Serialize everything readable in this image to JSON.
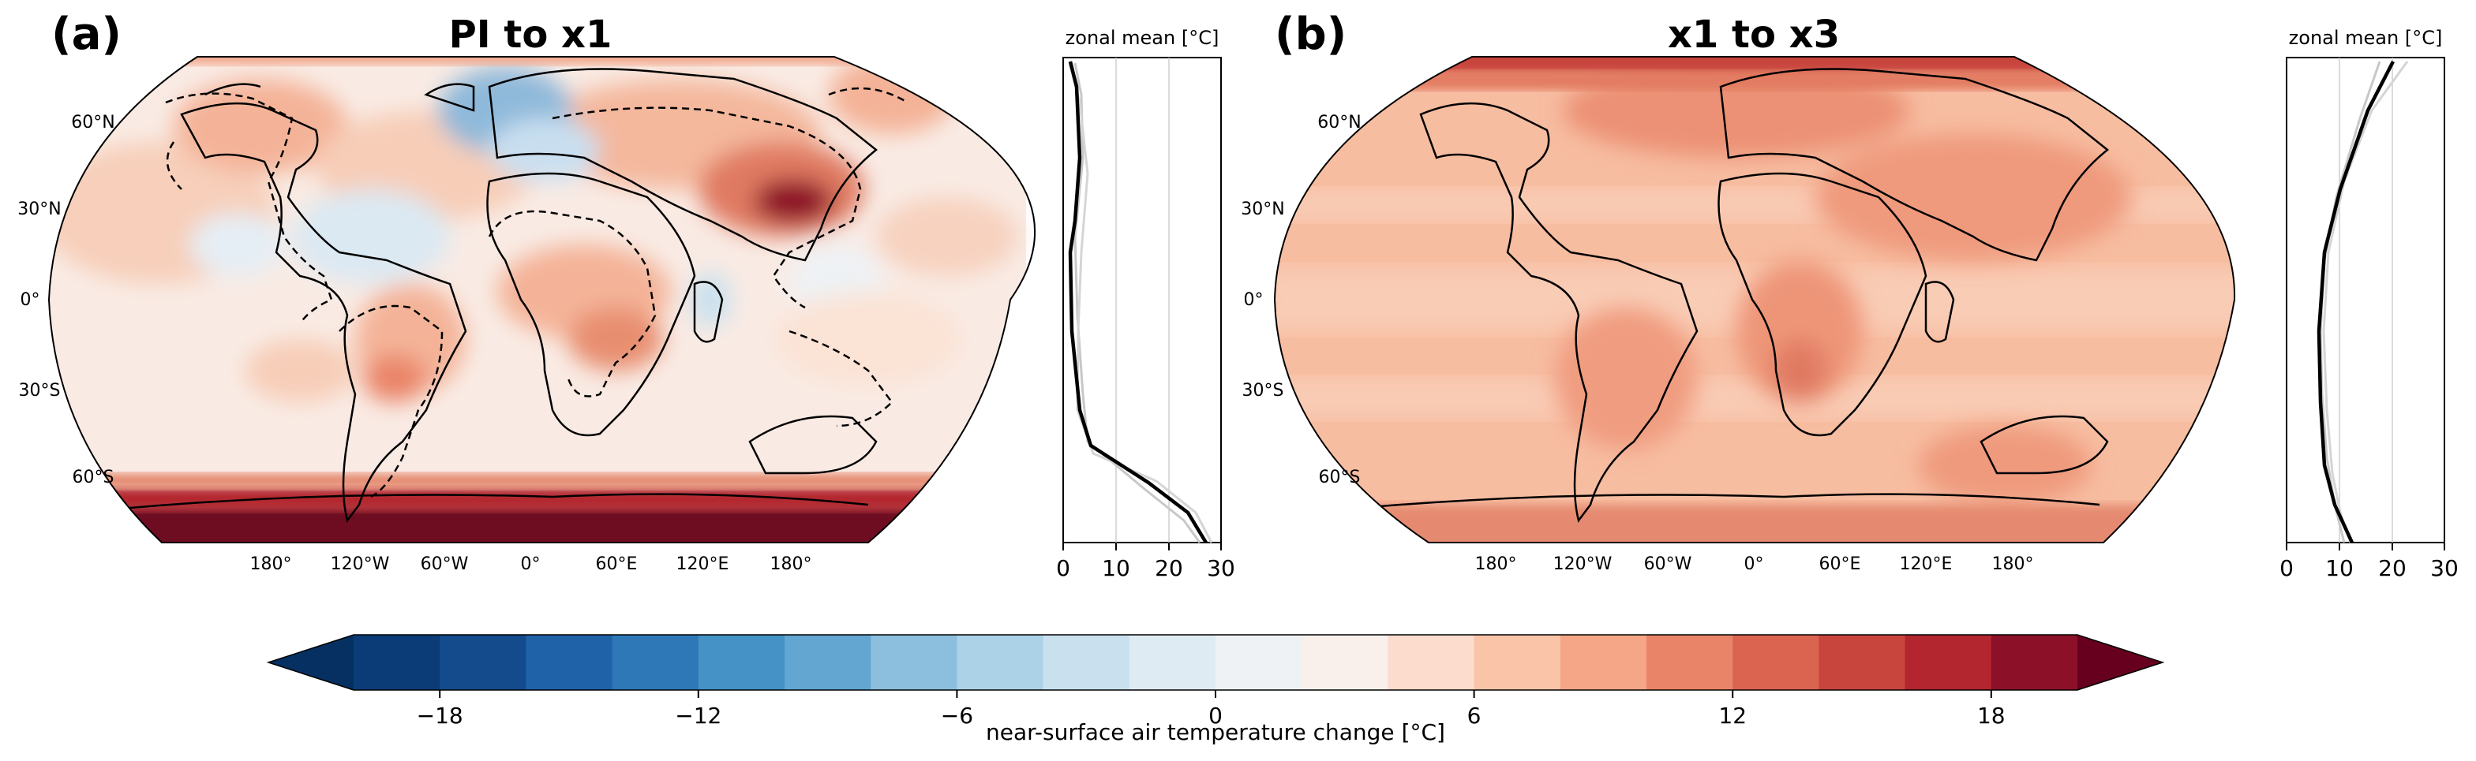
{
  "panels": [
    {
      "label": "(a)",
      "title": "PI to x1",
      "lat_labels": [
        "60°N",
        "30°N",
        "0°",
        "30°S",
        "60°S"
      ],
      "lon_labels": [
        "180°",
        "120°W",
        "60°W",
        "0°",
        "60°E",
        "120°E",
        "180°"
      ],
      "zonal_title": "zonal mean [°C]",
      "zonal_ticks": [
        "0",
        "10",
        "20",
        "30"
      ]
    },
    {
      "label": "(b)",
      "title": "x1 to x3",
      "lat_labels": [
        "60°N",
        "30°N",
        "0°",
        "30°S",
        "60°S"
      ],
      "lon_labels": [
        "180°",
        "120°W",
        "60°W",
        "0°",
        "60°E",
        "120°E",
        "180°"
      ],
      "zonal_title": "zonal mean [°C]",
      "zonal_ticks": [
        "0",
        "10",
        "20",
        "30"
      ]
    }
  ],
  "colorbar": {
    "tick_labels": [
      "−18",
      "−12",
      "−6",
      "0",
      "6",
      "12",
      "18"
    ],
    "label": "near-surface air temperature change [°C]",
    "colors": [
      "#0b3c78",
      "#134b8c",
      "#1f62a8",
      "#2e78b8",
      "#4492c6",
      "#62a6d1",
      "#8cbfde",
      "#abd2e6",
      "#c9e1ef",
      "#deebf3",
      "#eef2f5",
      "#f9efeb",
      "#fcdccd",
      "#f9c4a8",
      "#f4a687",
      "#ea8468",
      "#db6451",
      "#c8453e",
      "#b3262f",
      "#8c1028"
    ],
    "extend_min_color": "#053061",
    "extend_max_color": "#67001f",
    "range": [
      -20,
      20
    ],
    "tick_values": [
      -18,
      -12,
      -6,
      0,
      6,
      12,
      18
    ]
  }
}
